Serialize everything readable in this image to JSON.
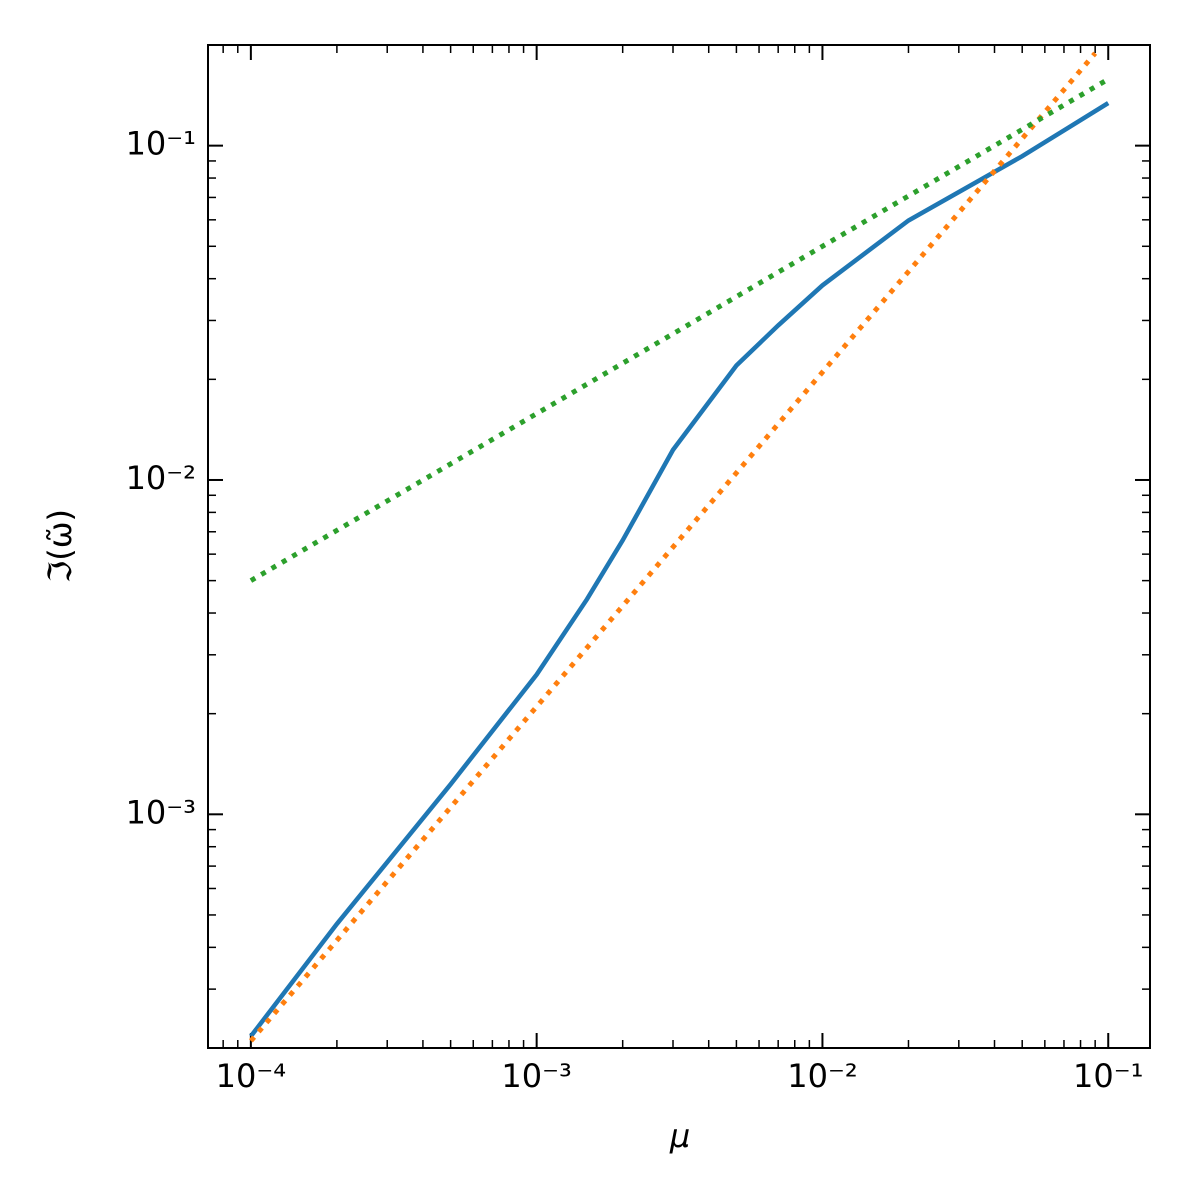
{
  "chart_data": {
    "type": "line",
    "x_label": "μ",
    "y_label": "ℑ(ω̃)",
    "log_x": true,
    "log_y": true,
    "xlim": [
      7.08e-05,
      0.14
    ],
    "ylim": [
      0.0002,
      0.2
    ],
    "xticks": [
      {
        "value": 0.0001,
        "label": "10⁻⁴"
      },
      {
        "value": 0.001,
        "label": "10⁻³"
      },
      {
        "value": 0.01,
        "label": "10⁻²"
      },
      {
        "value": 0.1,
        "label": "10⁻¹"
      }
    ],
    "yticks": [
      {
        "value": 0.001,
        "label": "10⁻³"
      },
      {
        "value": 0.01,
        "label": "10⁻²"
      },
      {
        "value": 0.1,
        "label": "10⁻¹"
      }
    ],
    "series": [
      {
        "color": "#1f77b4",
        "style": "solid",
        "x": [
          0.0001,
          0.0002,
          0.0005,
          0.001,
          0.0015,
          0.002,
          0.003,
          0.005,
          0.007,
          0.01,
          0.02,
          0.05,
          0.1
        ],
        "values": [
          0.000217,
          0.00047,
          0.00123,
          0.00262,
          0.0044,
          0.0066,
          0.0123,
          0.022,
          0.029,
          0.0382,
          0.0597,
          0.093,
          0.134
        ]
      },
      {
        "color": "#ff7f0e",
        "style": "dotted",
        "x": [
          0.0001,
          0.001,
          0.01,
          0.09
        ],
        "values": [
          0.00021,
          0.0021,
          0.021,
          0.189
        ]
      },
      {
        "color": "#2ca02c",
        "style": "dotted",
        "x": [
          0.0001,
          0.001,
          0.01,
          0.1
        ],
        "values": [
          0.005,
          0.0158,
          0.05,
          0.158
        ]
      }
    ]
  }
}
